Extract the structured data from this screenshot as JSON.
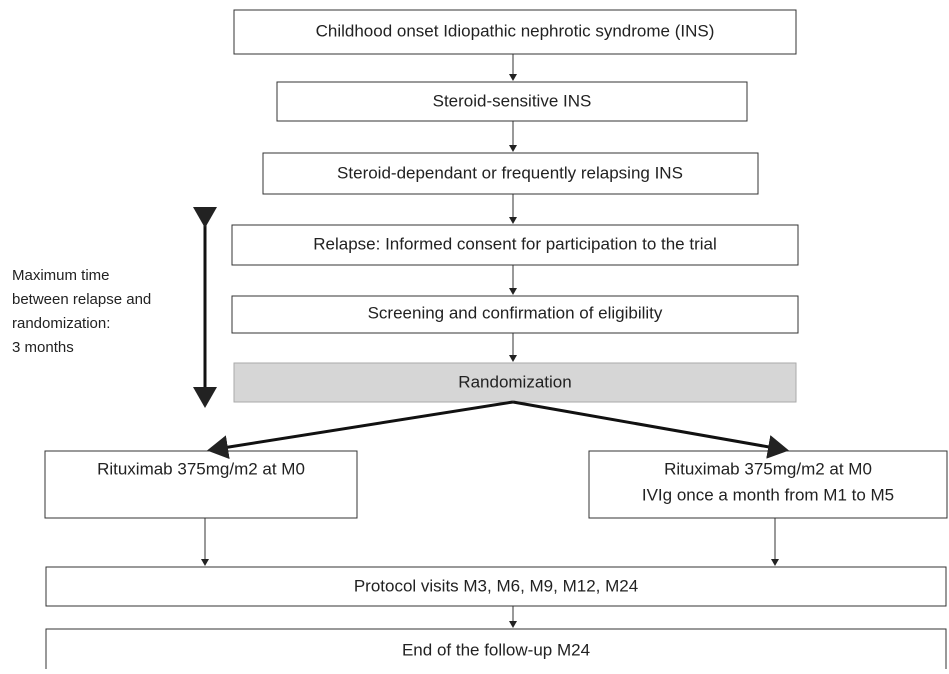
{
  "nodes": [
    {
      "label": "Childhood onset Idiopathic nephrotic syndrome (INS)"
    },
    {
      "label": "Steroid-sensitive INS"
    },
    {
      "label": "Steroid-dependant or frequently relapsing INS"
    },
    {
      "label": "Relapse: Informed consent for participation to the trial"
    },
    {
      "label": "Screening and confirmation of eligibility"
    },
    {
      "label": "Randomization"
    },
    {
      "label": "Rituximab 375mg/m2 at M0"
    },
    {
      "label": "Rituximab 375mg/m2 at M0",
      "label2": "IVIg once a month from M1 to M5"
    },
    {
      "label": "Protocol visits M3, M6, M9, M12, M24"
    },
    {
      "label": "End of the follow-up M24"
    }
  ],
  "side_note": {
    "lines": [
      "Maximum time",
      "between relapse and",
      "randomization:",
      "3 months"
    ]
  }
}
